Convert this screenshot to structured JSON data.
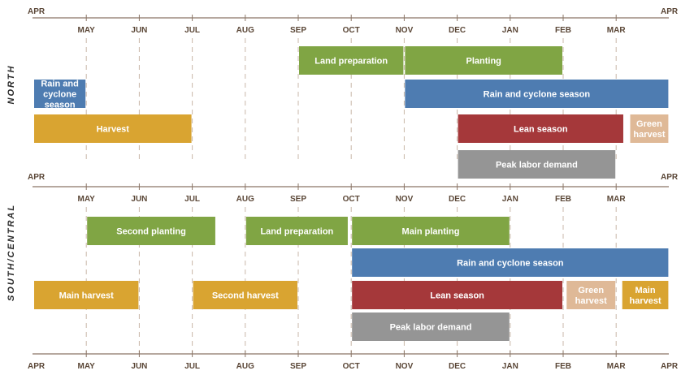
{
  "colors": {
    "green": "#80a544",
    "blue": "#4e7cb1",
    "gold": "#d9a431",
    "red": "#a5383a",
    "tan": "#dfb997",
    "gray": "#959595"
  },
  "months": [
    "APR",
    "MAY",
    "JUN",
    "JUL",
    "AUG",
    "SEP",
    "OCT",
    "NOV",
    "DEC",
    "JAN",
    "FEB",
    "MAR",
    "APR"
  ],
  "regions": [
    {
      "id": "north",
      "label": "NORTH",
      "bars": [
        {
          "label": [
            "Land preparation"
          ],
          "start": 5,
          "end": 7,
          "row": 0,
          "color": "green"
        },
        {
          "label": [
            "Planting"
          ],
          "start": 7,
          "end": 10,
          "row": 0,
          "color": "green"
        },
        {
          "label": [
            "Rain and",
            "cyclone",
            "season"
          ],
          "start": 0,
          "end": 1,
          "row": 1,
          "color": "blue"
        },
        {
          "label": [
            "Rain and cyclone season"
          ],
          "start": 7,
          "end": 12,
          "row": 1,
          "color": "blue"
        },
        {
          "label": [
            "Harvest"
          ],
          "start": 0,
          "end": 3,
          "row": 2,
          "color": "gold"
        },
        {
          "label": [
            "Lean season"
          ],
          "start": 8,
          "end": 11.15,
          "row": 2,
          "color": "red"
        },
        {
          "label": [
            "Green",
            "harvest"
          ],
          "start": 11.25,
          "end": 12,
          "row": 2,
          "color": "tan"
        },
        {
          "label": [
            "Peak labor demand"
          ],
          "start": 8,
          "end": 11,
          "row": 3,
          "color": "gray"
        }
      ]
    },
    {
      "id": "south",
      "label": "SOUTH/CENTRAL",
      "bars": [
        {
          "label": [
            "Second planting"
          ],
          "start": 1,
          "end": 3.45,
          "row": 0,
          "color": "green"
        },
        {
          "label": [
            "Land preparation"
          ],
          "start": 4,
          "end": 5.95,
          "row": 0,
          "color": "green"
        },
        {
          "label": [
            "Main planting"
          ],
          "start": 6,
          "end": 9,
          "row": 0,
          "color": "green"
        },
        {
          "label": [
            "Rain and cyclone season"
          ],
          "start": 6,
          "end": 12,
          "row": 1,
          "color": "blue"
        },
        {
          "label": [
            "Main harvest"
          ],
          "start": 0,
          "end": 2,
          "row": 2,
          "color": "gold"
        },
        {
          "label": [
            "Second harvest"
          ],
          "start": 3,
          "end": 5,
          "row": 2,
          "color": "gold"
        },
        {
          "label": [
            "Lean season"
          ],
          "start": 6,
          "end": 10,
          "row": 2,
          "color": "red"
        },
        {
          "label": [
            "Green",
            "harvest"
          ],
          "start": 10.05,
          "end": 11,
          "row": 2,
          "color": "tan"
        },
        {
          "label": [
            "Main",
            "harvest"
          ],
          "start": 11.1,
          "end": 12,
          "row": 2,
          "color": "gold"
        },
        {
          "label": [
            "Peak labor demand"
          ],
          "start": 6,
          "end": 9,
          "row": 3,
          "color": "gray"
        }
      ]
    }
  ]
}
